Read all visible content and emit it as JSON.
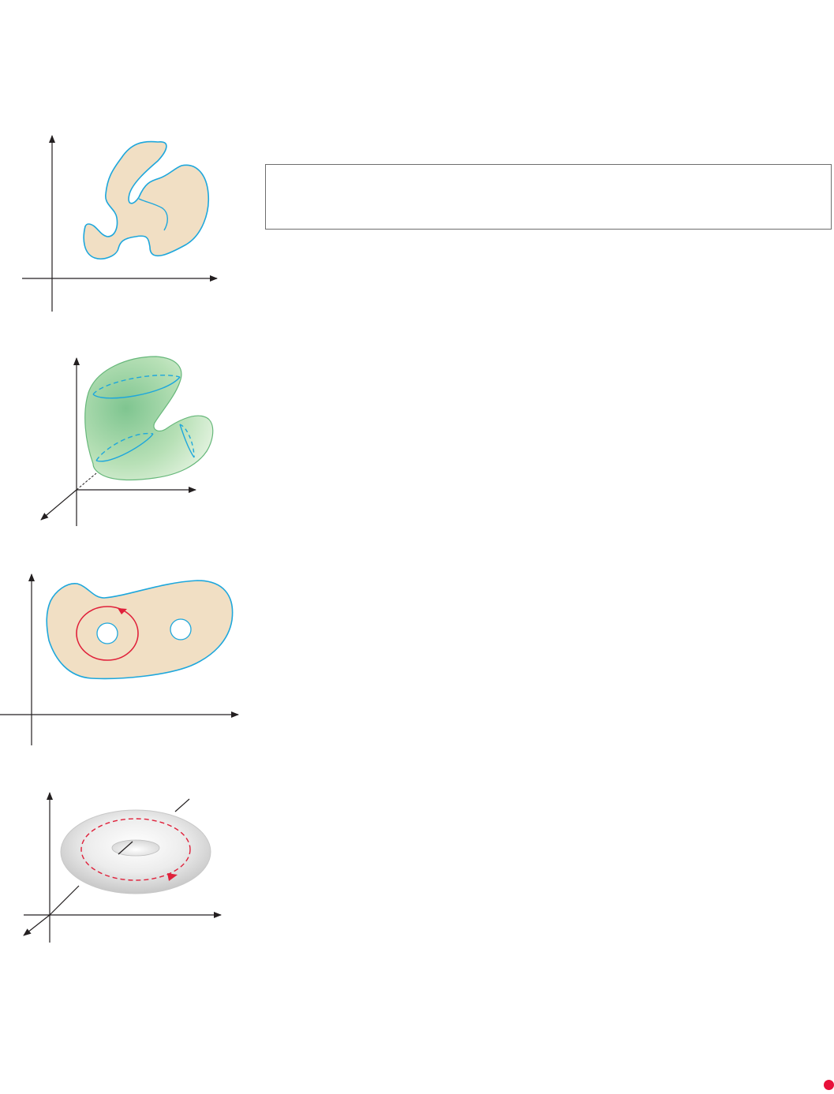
{
  "colors": {
    "axis": "#231f20",
    "region_fill": "#f1dfc4",
    "region_stroke": "#1ea7dc",
    "solid_fill_center": "#7fc590",
    "solid_fill_edge": "#d7eed4",
    "curve_red": "#e0203a",
    "torus_light": "#f8f8f8",
    "torus_dark": "#c4c4c4",
    "note_border": "#6d6d6d",
    "page_marker": "#e8103a"
  },
  "figures": [
    {
      "id": "simply-connected-plane-region",
      "kind": "plane-region"
    },
    {
      "id": "simply-connected-solid",
      "kind": "solid-region"
    },
    {
      "id": "region-with-two-holes",
      "kind": "plane-region-with-holes",
      "holes": 2,
      "loop": "closed-curve-around-hole"
    },
    {
      "id": "torus",
      "kind": "solid-torus",
      "loop": "dashed-closed-curve"
    }
  ],
  "note_box": {
    "text": ""
  }
}
